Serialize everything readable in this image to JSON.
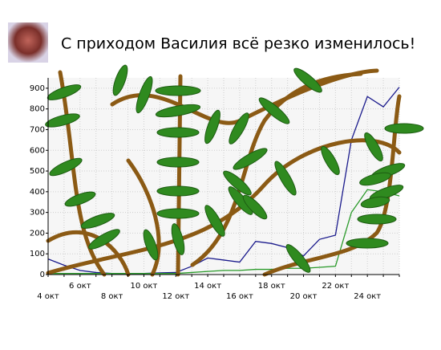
{
  "chart_data": {
    "type": "line",
    "title": "С приходом Василия всё резко изменилось!",
    "categories": [
      "4 окт",
      null,
      "6 окт",
      null,
      "8 окт",
      null,
      "10 окт",
      null,
      "12 окт",
      null,
      "14 окт",
      null,
      "16 окт",
      null,
      "18 окт",
      null,
      "20 окт",
      null,
      "22 окт",
      null,
      "24 окт",
      null,
      null
    ],
    "series": [
      {
        "name": "blue",
        "color": "#1a1a8c",
        "values": [
          75,
          45,
          20,
          10,
          5,
          5,
          5,
          8,
          10,
          40,
          80,
          70,
          60,
          160,
          150,
          130,
          90,
          170,
          190,
          650,
          860,
          810,
          905
        ]
      },
      {
        "name": "green",
        "color": "#2a9a2a",
        "values": [
          5,
          5,
          5,
          5,
          5,
          5,
          5,
          5,
          5,
          10,
          15,
          20,
          20,
          25,
          25,
          30,
          30,
          35,
          40,
          300,
          410,
          400,
          380
        ]
      }
    ],
    "ylim": [
      0,
      950
    ],
    "yticks": [
      0,
      100,
      200,
      300,
      400,
      500,
      600,
      700,
      800,
      900
    ],
    "grid": true
  }
}
